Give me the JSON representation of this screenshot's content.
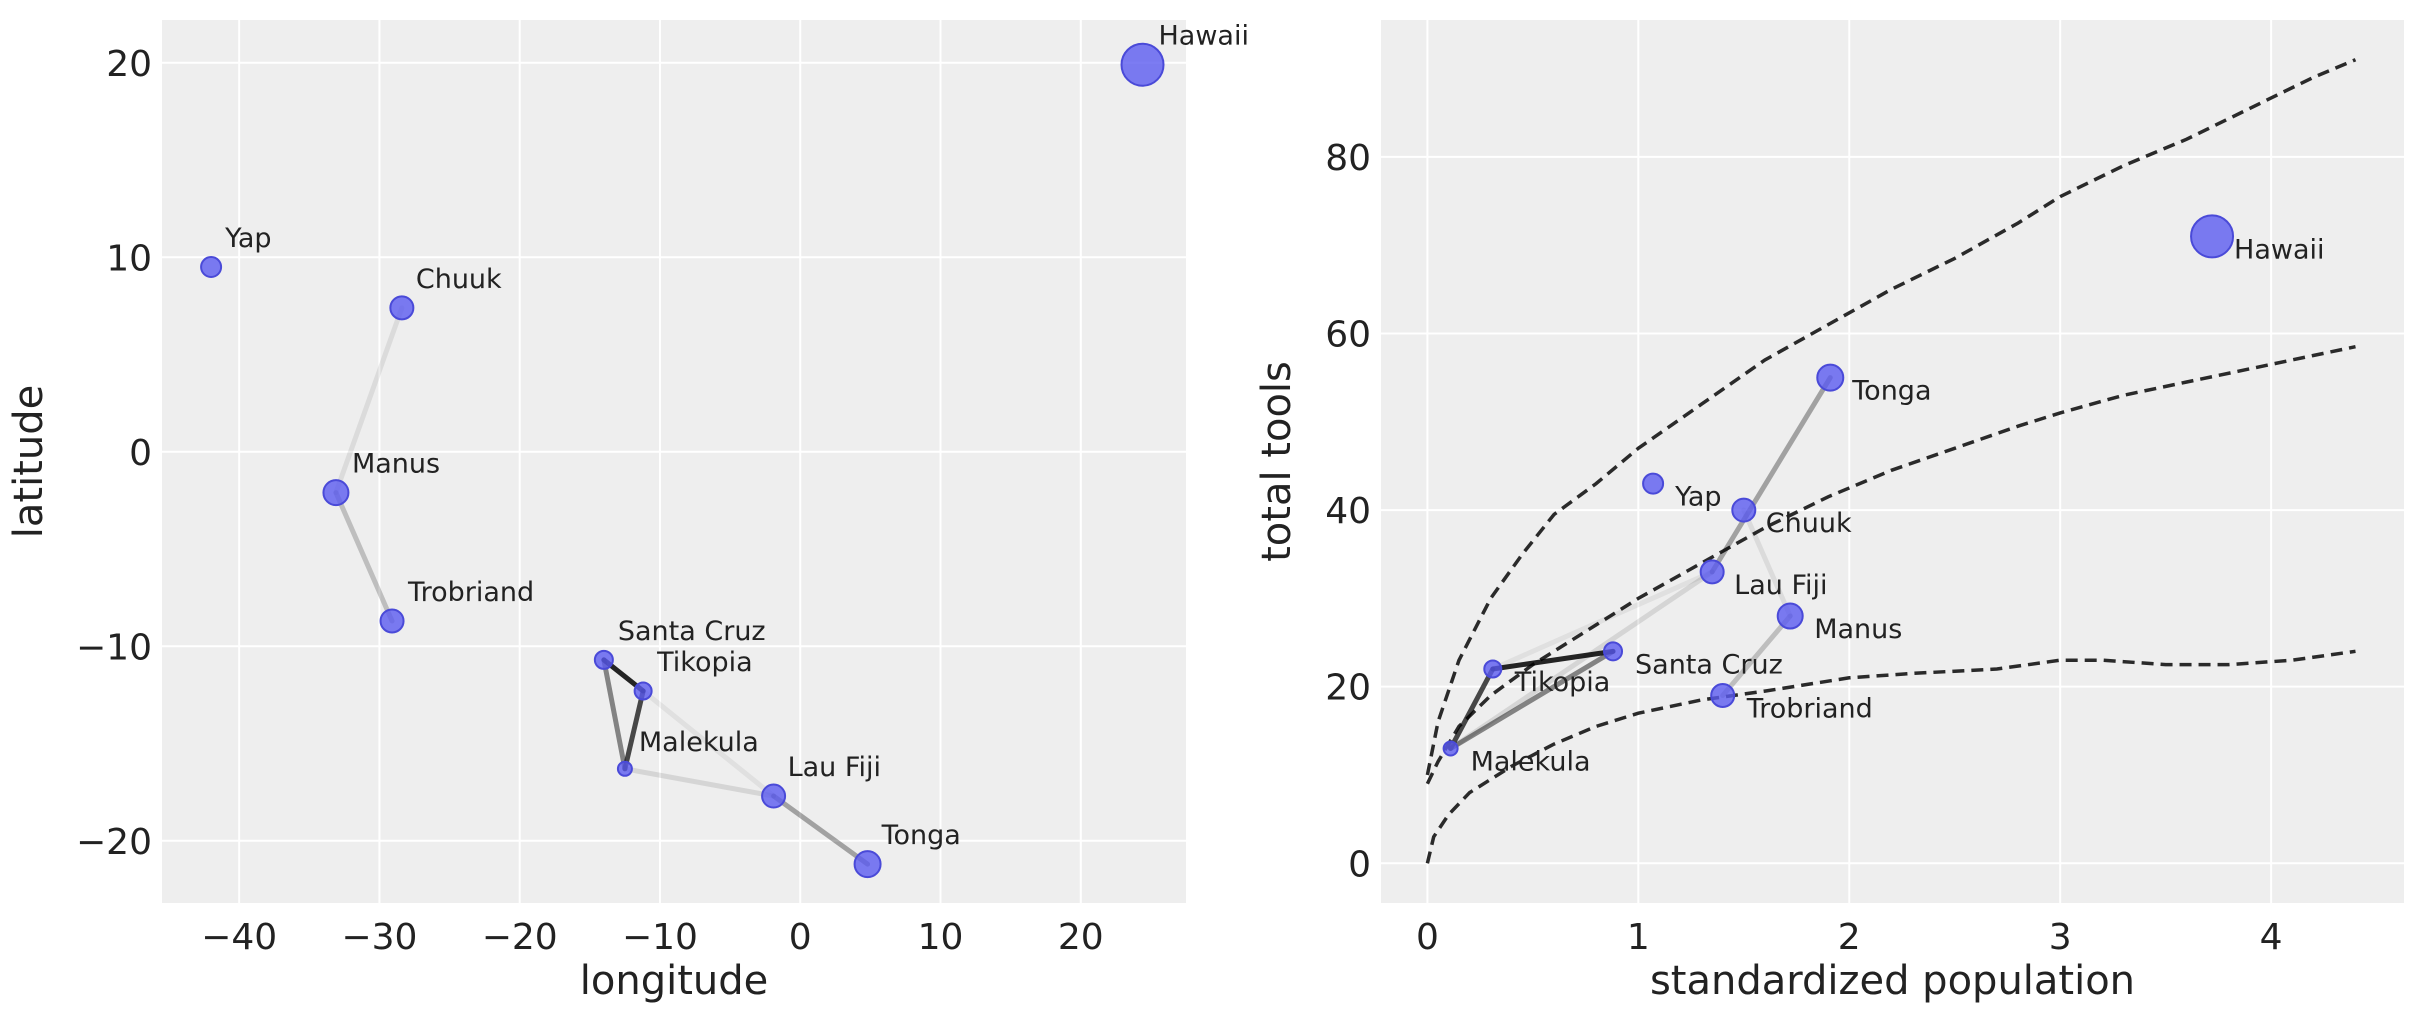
{
  "chart_data": [
    {
      "type": "scatter",
      "xlabel": "longitude",
      "ylabel": "latitude",
      "xlim": [
        -45.5,
        27.5
      ],
      "ylim": [
        -23.2,
        22.2
      ],
      "xticks": [
        -40,
        -30,
        -20,
        -10,
        0,
        10,
        20
      ],
      "yticks": [
        -20,
        -10,
        0,
        10,
        20
      ],
      "grid": true,
      "points": [
        {
          "name": "Malekula",
          "x": -12.5,
          "y": -16.3,
          "size": 12
        },
        {
          "name": "Tikopia",
          "x": -11.2,
          "y": -12.3,
          "size": 15
        },
        {
          "name": "Santa Cruz",
          "x": -14.0,
          "y": -10.7,
          "size": 16
        },
        {
          "name": "Yap",
          "x": -42.0,
          "y": 9.5,
          "size": 18
        },
        {
          "name": "Lau Fiji",
          "x": -1.9,
          "y": -17.7,
          "size": 21
        },
        {
          "name": "Trobriand",
          "x": -29.1,
          "y": -8.7,
          "size": 21
        },
        {
          "name": "Chuuk",
          "x": -28.4,
          "y": 7.4,
          "size": 21
        },
        {
          "name": "Manus",
          "x": -33.1,
          "y": -2.1,
          "size": 23
        },
        {
          "name": "Tonga",
          "x": 4.8,
          "y": -21.2,
          "size": 24
        },
        {
          "name": "Hawaii",
          "x": 24.4,
          "y": 19.9,
          "size": 40
        }
      ],
      "links": [
        {
          "from": "Santa Cruz",
          "to": "Tikopia",
          "strength": 0.85
        },
        {
          "from": "Tikopia",
          "to": "Malekula",
          "strength": 0.7
        },
        {
          "from": "Santa Cruz",
          "to": "Malekula",
          "strength": 0.45
        },
        {
          "from": "Lau Fiji",
          "to": "Tonga",
          "strength": 0.32
        },
        {
          "from": "Manus",
          "to": "Trobriand",
          "strength": 0.2
        },
        {
          "from": "Malekula",
          "to": "Lau Fiji",
          "strength": 0.1
        },
        {
          "from": "Manus",
          "to": "Chuuk",
          "strength": 0.08
        },
        {
          "from": "Tikopia",
          "to": "Lau Fiji",
          "strength": 0.06
        }
      ]
    },
    {
      "type": "scatter",
      "xlabel": "standardized population",
      "ylabel": "total tools",
      "xlim": [
        -0.22,
        4.63
      ],
      "ylim": [
        -4.5,
        95.5
      ],
      "xticks": [
        0,
        1,
        2,
        3,
        4
      ],
      "yticks": [
        0,
        20,
        40,
        60,
        80
      ],
      "grid": true,
      "points": [
        {
          "name": "Malekula",
          "x": 0.11,
          "y": 13,
          "size": 12
        },
        {
          "name": "Tikopia",
          "x": 0.31,
          "y": 22,
          "size": 15
        },
        {
          "name": "Santa Cruz",
          "x": 0.88,
          "y": 24,
          "size": 16
        },
        {
          "name": "Yap",
          "x": 1.07,
          "y": 43,
          "size": 18
        },
        {
          "name": "Lau Fiji",
          "x": 1.35,
          "y": 33,
          "size": 21
        },
        {
          "name": "Trobriand",
          "x": 1.4,
          "y": 19,
          "size": 21
        },
        {
          "name": "Chuuk",
          "x": 1.5,
          "y": 40,
          "size": 21
        },
        {
          "name": "Manus",
          "x": 1.72,
          "y": 28,
          "size": 23
        },
        {
          "name": "Tonga",
          "x": 1.91,
          "y": 55,
          "size": 24
        },
        {
          "name": "Hawaii",
          "x": 3.72,
          "y": 71,
          "size": 40
        }
      ],
      "links": [
        {
          "from": "Santa Cruz",
          "to": "Tikopia",
          "strength": 0.85
        },
        {
          "from": "Tikopia",
          "to": "Malekula",
          "strength": 0.7
        },
        {
          "from": "Santa Cruz",
          "to": "Malekula",
          "strength": 0.45
        },
        {
          "from": "Lau Fiji",
          "to": "Tonga",
          "strength": 0.32
        },
        {
          "from": "Manus",
          "to": "Trobriand",
          "strength": 0.2
        },
        {
          "from": "Malekula",
          "to": "Lau Fiji",
          "strength": 0.1
        },
        {
          "from": "Manus",
          "to": "Chuuk",
          "strength": 0.08
        },
        {
          "from": "Tikopia",
          "to": "Lau Fiji",
          "strength": 0.06
        }
      ],
      "lines": [
        {
          "name": "upper",
          "x": [
            0,
            0.05,
            0.15,
            0.3,
            0.45,
            0.6,
            0.8,
            1.0,
            1.3,
            1.6,
            1.9,
            2.2,
            2.5,
            2.8,
            3.0,
            3.3,
            3.6,
            3.9,
            4.2,
            4.4
          ],
          "y": [
            10,
            16,
            23,
            30,
            35,
            39.5,
            43,
            47,
            52,
            57,
            61,
            65,
            68.5,
            72.5,
            75.5,
            79,
            82,
            85.5,
            89,
            91
          ]
        },
        {
          "name": "mean",
          "x": [
            0,
            0.05,
            0.15,
            0.3,
            0.5,
            0.8,
            1.0,
            1.3,
            1.6,
            1.9,
            2.2,
            2.5,
            2.8,
            3.0,
            3.3,
            3.6,
            3.9,
            4.2,
            4.4
          ],
          "y": [
            9,
            11.5,
            15.5,
            19,
            22.5,
            27,
            30,
            34,
            38,
            41.5,
            44.5,
            47,
            49.5,
            51,
            53,
            54.5,
            56,
            57.5,
            58.5
          ]
        },
        {
          "name": "lower",
          "x": [
            0,
            0.03,
            0.1,
            0.2,
            0.4,
            0.6,
            0.8,
            1.0,
            1.3,
            1.6,
            2.0,
            2.3,
            2.7,
            3.0,
            3.2,
            3.5,
            3.8,
            4.1,
            4.4
          ],
          "y": [
            0,
            3,
            5.5,
            8,
            11,
            13.5,
            15.5,
            17,
            18.5,
            19.5,
            21,
            21.5,
            22,
            23,
            23,
            22.5,
            22.5,
            23,
            24
          ]
        }
      ]
    }
  ]
}
